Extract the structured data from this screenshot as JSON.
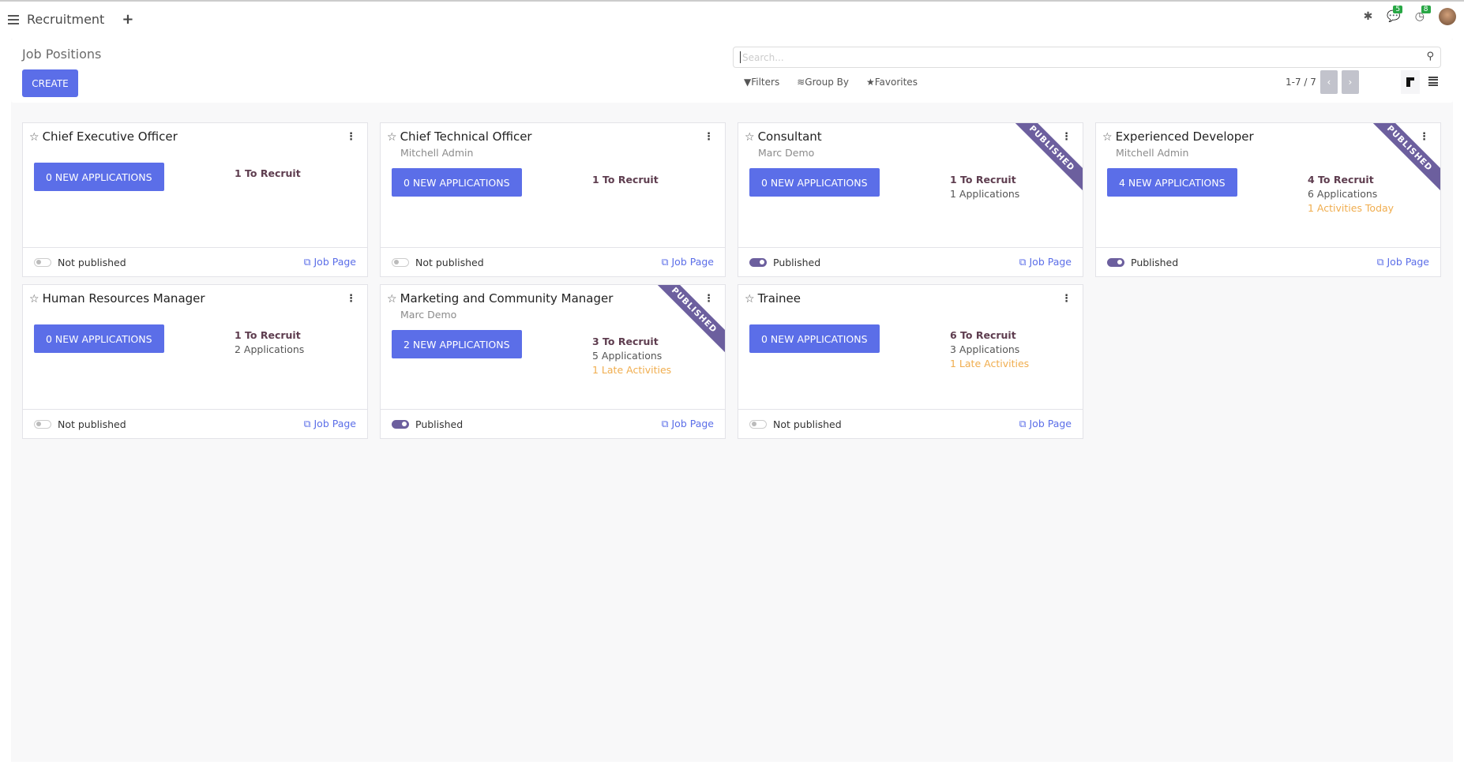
{
  "header": {
    "app_title": "Recruitment",
    "messages_count": "5",
    "activities_count": "8"
  },
  "control_panel": {
    "title": "Job Positions",
    "create_label": "CREATE",
    "search_placeholder": "Search...",
    "filters_label": "Filters",
    "group_by_label": "Group By",
    "favorites_label": "Favorites",
    "pager": "1-7 / 7"
  },
  "colors": {
    "primary": "#5b6ee8",
    "published": "#6c5f9e",
    "warning": "#f0ad4e",
    "recruit": "#5e3d4f"
  },
  "cards": [
    {
      "title": "Chief Executive Officer",
      "responsible": "",
      "new_apps": "0 NEW APPLICATIONS",
      "to_recruit": "1 To Recruit",
      "applications": "",
      "activities": "",
      "published": false,
      "status": "Not published",
      "ribbon": "",
      "job_page": "Job Page"
    },
    {
      "title": "Chief Technical Officer",
      "responsible": "Mitchell Admin",
      "new_apps": "0 NEW APPLICATIONS",
      "to_recruit": "1 To Recruit",
      "applications": "",
      "activities": "",
      "published": false,
      "status": "Not published",
      "ribbon": "",
      "job_page": "Job Page"
    },
    {
      "title": "Consultant",
      "responsible": "Marc Demo",
      "new_apps": "0 NEW APPLICATIONS",
      "to_recruit": "1 To Recruit",
      "applications": "1 Applications",
      "activities": "",
      "published": true,
      "status": "Published",
      "ribbon": "PUBLISHED",
      "job_page": "Job Page"
    },
    {
      "title": "Experienced Developer",
      "responsible": "Mitchell Admin",
      "new_apps": "4 NEW APPLICATIONS",
      "to_recruit": "4 To Recruit",
      "applications": "6 Applications",
      "activities": "1 Activities Today",
      "published": true,
      "status": "Published",
      "ribbon": "PUBLISHED",
      "job_page": "Job Page"
    },
    {
      "title": "Human Resources Manager",
      "responsible": "",
      "new_apps": "0 NEW APPLICATIONS",
      "to_recruit": "1 To Recruit",
      "applications": "2 Applications",
      "activities": "",
      "published": false,
      "status": "Not published",
      "ribbon": "",
      "job_page": "Job Page"
    },
    {
      "title": "Marketing and Community Manager",
      "responsible": "Marc Demo",
      "new_apps": "2 NEW APPLICATIONS",
      "to_recruit": "3 To Recruit",
      "applications": "5 Applications",
      "activities": "1 Late Activities",
      "published": true,
      "status": "Published",
      "ribbon": "PUBLISHED",
      "job_page": "Job Page"
    },
    {
      "title": "Trainee",
      "responsible": "",
      "new_apps": "0 NEW APPLICATIONS",
      "to_recruit": "6 To Recruit",
      "applications": "3 Applications",
      "activities": "1 Late Activities",
      "published": false,
      "status": "Not published",
      "ribbon": "",
      "job_page": "Job Page"
    }
  ]
}
